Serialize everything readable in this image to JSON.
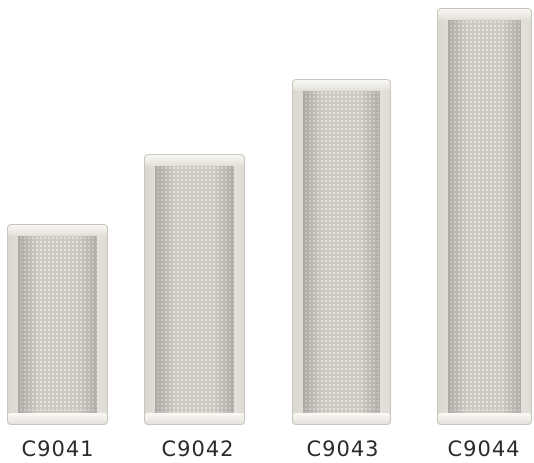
{
  "products": [
    {
      "model": "C9041"
    },
    {
      "model": "C9042"
    },
    {
      "model": "C9043"
    },
    {
      "model": "C9044"
    }
  ],
  "colors": {
    "housing": "#f1efe9",
    "grille": "#d6d3cc",
    "label_text": "#2b2b2b"
  }
}
